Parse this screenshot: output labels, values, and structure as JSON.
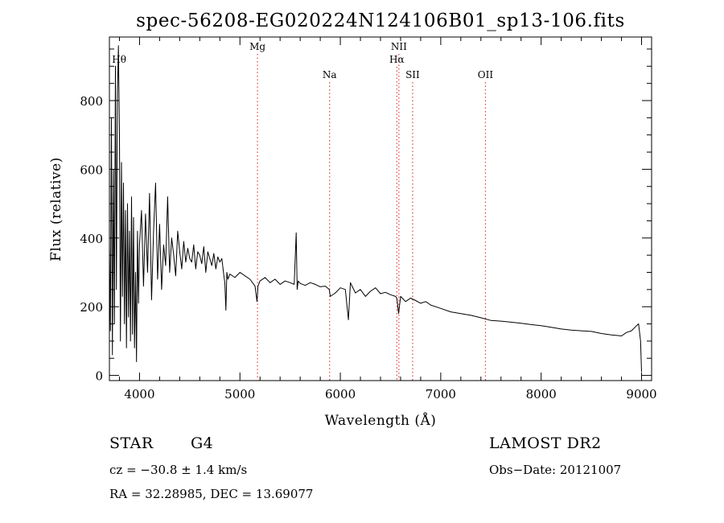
{
  "chart_data": {
    "type": "line",
    "title": "spec-56208-EG020224N124106B01_sp13-106.fits",
    "xlabel": "Wavelength (Å)",
    "ylabel": "Flux (relative)",
    "xlim": [
      3700,
      9100
    ],
    "ylim": [
      -15,
      985
    ],
    "xticks": [
      4000,
      5000,
      6000,
      7000,
      8000,
      9000
    ],
    "yticks": [
      0,
      200,
      400,
      600,
      800
    ],
    "grid": false,
    "series": [
      {
        "name": "spectrum",
        "x": [
          3700,
          3710,
          3720,
          3730,
          3740,
          3750,
          3760,
          3770,
          3780,
          3790,
          3800,
          3810,
          3820,
          3830,
          3840,
          3850,
          3860,
          3870,
          3880,
          3890,
          3900,
          3910,
          3920,
          3930,
          3940,
          3950,
          3960,
          3970,
          3980,
          3990,
          4000,
          4020,
          4040,
          4060,
          4080,
          4100,
          4120,
          4140,
          4160,
          4180,
          4200,
          4220,
          4240,
          4260,
          4280,
          4300,
          4320,
          4340,
          4360,
          4380,
          4400,
          4420,
          4440,
          4460,
          4480,
          4500,
          4520,
          4540,
          4560,
          4580,
          4600,
          4620,
          4640,
          4660,
          4680,
          4700,
          4720,
          4740,
          4760,
          4780,
          4800,
          4820,
          4840,
          4850,
          4860,
          4870,
          4880,
          4900,
          4950,
          5000,
          5050,
          5100,
          5150,
          5170,
          5180,
          5200,
          5250,
          5300,
          5350,
          5400,
          5450,
          5500,
          5540,
          5560,
          5570,
          5580,
          5600,
          5650,
          5700,
          5750,
          5800,
          5850,
          5890,
          5900,
          5950,
          6000,
          6050,
          6080,
          6100,
          6150,
          6200,
          6250,
          6300,
          6350,
          6400,
          6450,
          6500,
          6550,
          6563,
          6580,
          6600,
          6650,
          6700,
          6750,
          6800,
          6850,
          6900,
          6950,
          7000,
          7100,
          7200,
          7300,
          7400,
          7500,
          7600,
          7700,
          7800,
          7900,
          8000,
          8100,
          8200,
          8300,
          8400,
          8500,
          8600,
          8700,
          8800,
          8850,
          8900,
          8950,
          8970,
          8990,
          9000
        ],
        "values": [
          380,
          130,
          750,
          60,
          600,
          150,
          900,
          250,
          820,
          960,
          700,
          100,
          620,
          230,
          560,
          150,
          480,
          80,
          500,
          170,
          420,
          100,
          520,
          120,
          460,
          80,
          300,
          40,
          420,
          210,
          380,
          480,
          260,
          470,
          300,
          530,
          220,
          420,
          560,
          280,
          440,
          250,
          380,
          320,
          520,
          300,
          400,
          350,
          290,
          420,
          360,
          310,
          390,
          330,
          370,
          340,
          330,
          380,
          310,
          360,
          350,
          325,
          375,
          300,
          360,
          340,
          320,
          355,
          310,
          345,
          330,
          340,
          290,
          270,
          190,
          300,
          280,
          295,
          285,
          300,
          290,
          280,
          260,
          215,
          260,
          275,
          285,
          270,
          280,
          265,
          275,
          270,
          265,
          415,
          250,
          275,
          268,
          262,
          270,
          265,
          258,
          260,
          250,
          230,
          240,
          255,
          250,
          162,
          270,
          240,
          250,
          230,
          245,
          255,
          238,
          242,
          235,
          230,
          225,
          180,
          230,
          215,
          225,
          218,
          210,
          215,
          205,
          200,
          195,
          185,
          180,
          175,
          168,
          160,
          158,
          155,
          152,
          148,
          145,
          140,
          135,
          132,
          130,
          128,
          122,
          118,
          115,
          125,
          130,
          145,
          150,
          100,
          10
        ],
        "color": "#000000"
      }
    ],
    "line_markers": [
      {
        "label": "Hθ",
        "x": 3797
      },
      {
        "label": "Mg",
        "x": 5175
      },
      {
        "label": "Na",
        "x": 5893
      },
      {
        "label": "NII",
        "x": 6583
      },
      {
        "label": "Hα",
        "x": 6563
      },
      {
        "label": "SII",
        "x": 6720
      },
      {
        "label": "OII",
        "x": 7445
      }
    ],
    "marker_color": "#e04040"
  },
  "info": {
    "class": "STAR",
    "subclass": "G4",
    "cz": "cz = −30.8 ± 1.4 km/s",
    "coords": "RA =  32.28985, DEC =  13.69077",
    "survey": "LAMOST DR2",
    "obsdate": "Obs−Date: 20121007"
  }
}
